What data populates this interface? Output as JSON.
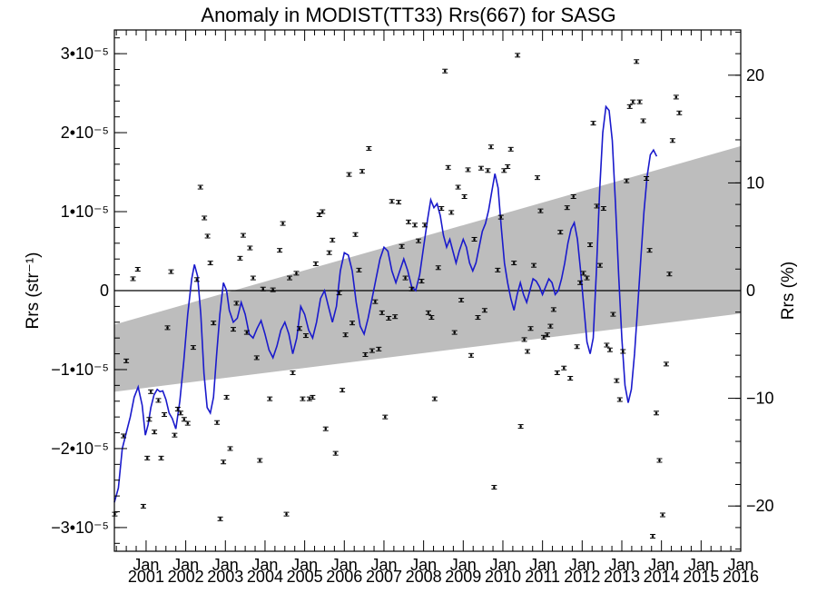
{
  "chart_data": {
    "type": "scatter",
    "title": "Anomaly in MODIST(TT33) Rrs(667) for SASG",
    "ylabel_left": "Rrs (str⁻¹)",
    "ylabel_right": "Rrs (%)",
    "x_tick_month_label": "Jan",
    "x_ticks": [
      "2001",
      "2002",
      "2003",
      "2004",
      "2005",
      "2006",
      "2007",
      "2008",
      "2009",
      "2010",
      "2011",
      "2012",
      "2013",
      "2014",
      "2015",
      "2016"
    ],
    "xlim": [
      2000.2,
      2016.0
    ],
    "ylim_left": [
      -3.3e-05,
      3.3e-05
    ],
    "ylim_right": [
      -24.2,
      24.2
    ],
    "y_ticks_left": [
      {
        "value": 3e-05,
        "label": "3•10⁻⁵"
      },
      {
        "value": 2e-05,
        "label": "2•10⁻⁵"
      },
      {
        "value": 1e-05,
        "label": "1•10⁻⁵"
      },
      {
        "value": 0,
        "label": "0"
      },
      {
        "value": -1e-05,
        "label": "−1•10⁻⁵"
      },
      {
        "value": -2e-05,
        "label": "−2•10⁻⁵"
      },
      {
        "value": -3e-05,
        "label": "−3•10⁻⁵"
      }
    ],
    "y_ticks_right": [
      {
        "value": 20,
        "label": "20"
      },
      {
        "value": 10,
        "label": "10"
      },
      {
        "value": 0,
        "label": "0"
      },
      {
        "value": -10,
        "label": "−10"
      },
      {
        "value": -20,
        "label": "−20"
      }
    ],
    "trend_band": {
      "x": [
        2000.2,
        2016.0
      ],
      "upper": [
        -4.3e-06,
        1.83e-05
      ],
      "lower": [
        -1.28e-05,
        -2.9e-06
      ]
    },
    "points": [
      [
        2000.21,
        -2.83e-05
      ],
      [
        2000.43,
        -1.84e-05
      ],
      [
        2000.5,
        -8.9e-06
      ],
      [
        2000.67,
        1.5e-06
      ],
      [
        2000.79,
        2.7e-06
      ],
      [
        2000.93,
        -2.73e-05
      ],
      [
        2001.03,
        -2.12e-05
      ],
      [
        2001.08,
        -1.63e-05
      ],
      [
        2001.12,
        -1.28e-05
      ],
      [
        2001.21,
        -1.79e-05
      ],
      [
        2001.31,
        -1.39e-05
      ],
      [
        2001.38,
        -2.12e-05
      ],
      [
        2001.46,
        -1.57e-05
      ],
      [
        2001.54,
        -4.7e-06
      ],
      [
        2001.63,
        2.4e-06
      ],
      [
        2001.72,
        -1.83e-05
      ],
      [
        2001.8,
        -1.5e-05
      ],
      [
        2001.87,
        -1.55e-05
      ],
      [
        2001.96,
        -1.63e-05
      ],
      [
        2002.05,
        -1.68e-05
      ],
      [
        2002.19,
        -7.2e-06
      ],
      [
        2002.28,
        1.4e-06
      ],
      [
        2002.37,
        1.31e-05
      ],
      [
        2002.47,
        9.2e-06
      ],
      [
        2002.55,
        6.9e-06
      ],
      [
        2002.62,
        3.5e-06
      ],
      [
        2002.7,
        -4.1e-06
      ],
      [
        2002.79,
        -1.67e-05
      ],
      [
        2002.87,
        -2.89e-05
      ],
      [
        2002.95,
        -2.17e-05
      ],
      [
        2003.03,
        -1.35e-05
      ],
      [
        2003.12,
        -2e-05
      ],
      [
        2003.2,
        -4.9e-06
      ],
      [
        2003.28,
        -1.6e-06
      ],
      [
        2003.37,
        4.1e-06
      ],
      [
        2003.45,
        7e-06
      ],
      [
        2003.54,
        -5.3e-06
      ],
      [
        2003.62,
        5.4e-06
      ],
      [
        2003.7,
        1.6e-06
      ],
      [
        2003.79,
        -8.5e-06
      ],
      [
        2003.87,
        -2.15e-05
      ],
      [
        2003.95,
        2e-07
      ],
      [
        2004.12,
        -1.37e-05
      ],
      [
        2004.2,
        1e-07
      ],
      [
        2004.37,
        5.1e-06
      ],
      [
        2004.45,
        8.5e-06
      ],
      [
        2004.54,
        -2.83e-05
      ],
      [
        2004.62,
        1.6e-06
      ],
      [
        2004.7,
        -1.04e-05
      ],
      [
        2004.79,
        2.2e-06
      ],
      [
        2004.87,
        -4.8e-06
      ],
      [
        2004.95,
        -1.37e-05
      ],
      [
        2005.03,
        -5.7e-06
      ],
      [
        2005.12,
        -1.37e-05
      ],
      [
        2005.2,
        -1.35e-05
      ],
      [
        2005.28,
        3.4e-06
      ],
      [
        2005.37,
        9.6e-06
      ],
      [
        2005.45,
        1e-05
      ],
      [
        2005.53,
        -1.75e-05
      ],
      [
        2005.62,
        4.8e-06
      ],
      [
        2005.7,
        6.4e-06
      ],
      [
        2005.78,
        -2.06e-05
      ],
      [
        2005.87,
        -3e-07
      ],
      [
        2005.95,
        -1.26e-05
      ],
      [
        2006.03,
        -5.6e-06
      ],
      [
        2006.12,
        1.47e-05
      ],
      [
        2006.2,
        -4.1e-06
      ],
      [
        2006.28,
        7.1e-06
      ],
      [
        2006.37,
        2.6e-06
      ],
      [
        2006.45,
        1.51e-05
      ],
      [
        2006.53,
        -8.1e-06
      ],
      [
        2006.62,
        1.8e-05
      ],
      [
        2006.7,
        -7.6e-06
      ],
      [
        2006.78,
        -1.4e-06
      ],
      [
        2006.87,
        -7.4e-06
      ],
      [
        2006.95,
        -2.8e-06
      ],
      [
        2007.03,
        -1.6e-05
      ],
      [
        2007.12,
        -3.5e-06
      ],
      [
        2007.2,
        1.13e-05
      ],
      [
        2007.28,
        -3.3e-06
      ],
      [
        2007.37,
        1.12e-05
      ],
      [
        2007.45,
        5.6e-06
      ],
      [
        2007.54,
        1.6e-06
      ],
      [
        2007.62,
        8.7e-06
      ],
      [
        2007.7,
        2e-07
      ],
      [
        2007.78,
        8.3e-06
      ],
      [
        2007.87,
        6.3e-06
      ],
      [
        2007.95,
        1.2e-06
      ],
      [
        2008.03,
        8.3e-06
      ],
      [
        2008.12,
        -2.8e-06
      ],
      [
        2008.2,
        -3.4e-06
      ],
      [
        2008.28,
        -1.37e-05
      ],
      [
        2008.37,
        2.9e-06
      ],
      [
        2008.45,
        1.04e-05
      ],
      [
        2008.54,
        2.78e-05
      ],
      [
        2008.62,
        1.56e-05
      ],
      [
        2008.7,
        9.9e-06
      ],
      [
        2008.78,
        -5.3e-06
      ],
      [
        2008.87,
        1.31e-05
      ],
      [
        2008.95,
        -1.2e-06
      ],
      [
        2009.03,
        1.19e-05
      ],
      [
        2009.12,
        1.53e-05
      ],
      [
        2009.2,
        -8.2e-06
      ],
      [
        2009.28,
        6.5e-06
      ],
      [
        2009.37,
        -3.4e-06
      ],
      [
        2009.45,
        1.55e-05
      ],
      [
        2009.54,
        -2.5e-06
      ],
      [
        2009.62,
        1.52e-05
      ],
      [
        2009.7,
        1.82e-05
      ],
      [
        2009.78,
        -2.49e-05
      ],
      [
        2009.87,
        2.6e-06
      ],
      [
        2009.95,
        9.3e-06
      ],
      [
        2010.03,
        1.52e-05
      ],
      [
        2010.12,
        1.57e-05
      ],
      [
        2010.2,
        1.79e-05
      ],
      [
        2010.28,
        3.5e-06
      ],
      [
        2010.37,
        2.98e-05
      ],
      [
        2010.45,
        -1.72e-05
      ],
      [
        2010.54,
        -6.2e-06
      ],
      [
        2010.62,
        -7.7e-06
      ],
      [
        2010.7,
        -4.8e-06
      ],
      [
        2010.78,
        3.2e-06
      ],
      [
        2010.87,
        1.43e-05
      ],
      [
        2010.95,
        1.01e-05
      ],
      [
        2011.03,
        -5.9e-06
      ],
      [
        2011.12,
        -5.6e-06
      ],
      [
        2011.2,
        -4.5e-06
      ],
      [
        2011.28,
        -2.4e-06
      ],
      [
        2011.37,
        -1.04e-05
      ],
      [
        2011.45,
        7.4e-06
      ],
      [
        2011.54,
        -9.8e-06
      ],
      [
        2011.62,
        1.05e-05
      ],
      [
        2011.7,
        -1.11e-05
      ],
      [
        2011.78,
        1.19e-05
      ],
      [
        2011.87,
        -7.1e-06
      ],
      [
        2011.95,
        1e-06
      ],
      [
        2012.03,
        2.2e-06
      ],
      [
        2012.12,
        1.6e-06
      ],
      [
        2012.2,
        5.8e-06
      ],
      [
        2012.28,
        2.12e-05
      ],
      [
        2012.37,
        1.07e-05
      ],
      [
        2012.45,
        3.2e-06
      ],
      [
        2012.54,
        1.04e-05
      ],
      [
        2012.62,
        -6.9e-06
      ],
      [
        2012.7,
        -7.5e-06
      ],
      [
        2012.78,
        -3e-06
      ],
      [
        2012.87,
        -1.14e-05
      ],
      [
        2012.95,
        -1.38e-05
      ],
      [
        2013.03,
        -7.7e-06
      ],
      [
        2013.12,
        1.39e-05
      ],
      [
        2013.2,
        2.33e-05
      ],
      [
        2013.28,
        2.39e-05
      ],
      [
        2013.37,
        2.9e-05
      ],
      [
        2013.45,
        2.39e-05
      ],
      [
        2013.54,
        2.15e-05
      ],
      [
        2013.62,
        1.42e-05
      ],
      [
        2013.7,
        5.1e-06
      ],
      [
        2013.78,
        -3.11e-05
      ],
      [
        2013.87,
        -1.55e-05
      ],
      [
        2013.95,
        -2.15e-05
      ],
      [
        2014.03,
        -2.84e-05
      ],
      [
        2014.12,
        -9.3e-06
      ],
      [
        2014.2,
        2.1e-06
      ],
      [
        2014.28,
        1.9e-05
      ],
      [
        2014.37,
        2.45e-05
      ],
      [
        2014.45,
        2.25e-05
      ]
    ],
    "anomaly_line": [
      [
        2000.2,
        -2.68e-05
      ],
      [
        2000.3,
        -2.5e-05
      ],
      [
        2000.4,
        -2e-05
      ],
      [
        2000.5,
        -1.8e-05
      ],
      [
        2000.6,
        -1.6e-05
      ],
      [
        2000.7,
        -1.35e-05
      ],
      [
        2000.8,
        -1.22e-05
      ],
      [
        2000.9,
        -1.45e-05
      ],
      [
        2000.98,
        -1.83e-05
      ],
      [
        2001.05,
        -1.7e-05
      ],
      [
        2001.12,
        -1.48e-05
      ],
      [
        2001.2,
        -1.32e-05
      ],
      [
        2001.28,
        -1.25e-05
      ],
      [
        2001.35,
        -1.28e-05
      ],
      [
        2001.42,
        -1.27e-05
      ],
      [
        2001.5,
        -1.38e-05
      ],
      [
        2001.58,
        -1.55e-05
      ],
      [
        2001.66,
        -1.62e-05
      ],
      [
        2001.75,
        -1.75e-05
      ],
      [
        2001.85,
        -1.4e-05
      ],
      [
        2001.95,
        -9e-06
      ],
      [
        2002.05,
        -3e-06
      ],
      [
        2002.15,
        1.5e-06
      ],
      [
        2002.22,
        3.3e-06
      ],
      [
        2002.3,
        1.8e-06
      ],
      [
        2002.38,
        -3e-06
      ],
      [
        2002.46,
        -1.05e-05
      ],
      [
        2002.54,
        -1.48e-05
      ],
      [
        2002.62,
        -1.55e-05
      ],
      [
        2002.7,
        -1.35e-05
      ],
      [
        2002.78,
        -8e-06
      ],
      [
        2002.86,
        -3e-06
      ],
      [
        2002.95,
        1e-06
      ],
      [
        2003.03,
        0.0
      ],
      [
        2003.1,
        -2.5e-06
      ],
      [
        2003.2,
        -4e-06
      ],
      [
        2003.3,
        -3.5e-06
      ],
      [
        2003.4,
        -1.5e-06
      ],
      [
        2003.5,
        -3e-06
      ],
      [
        2003.6,
        -5.5e-06
      ],
      [
        2003.7,
        -6e-06
      ],
      [
        2003.8,
        -4.8e-06
      ],
      [
        2003.9,
        -3.8e-06
      ],
      [
        2004.0,
        -5.5e-06
      ],
      [
        2004.1,
        -7.5e-06
      ],
      [
        2004.2,
        -8.5e-06
      ],
      [
        2004.3,
        -7e-06
      ],
      [
        2004.4,
        -5e-06
      ],
      [
        2004.5,
        -4e-06
      ],
      [
        2004.6,
        -5.5e-06
      ],
      [
        2004.7,
        -8e-06
      ],
      [
        2004.8,
        -6e-06
      ],
      [
        2004.9,
        -2e-06
      ],
      [
        2005.0,
        -3e-06
      ],
      [
        2005.1,
        -5e-06
      ],
      [
        2005.2,
        -6e-06
      ],
      [
        2005.3,
        -4e-06
      ],
      [
        2005.4,
        -1e-06
      ],
      [
        2005.5,
        0.0
      ],
      [
        2005.6,
        -2e-06
      ],
      [
        2005.7,
        -4e-06
      ],
      [
        2005.8,
        -2e-06
      ],
      [
        2005.9,
        2.5e-06
      ],
      [
        2006.0,
        4.8e-06
      ],
      [
        2006.1,
        4.5e-06
      ],
      [
        2006.2,
        2.5e-06
      ],
      [
        2006.3,
        -1.5e-06
      ],
      [
        2006.4,
        -4.5e-06
      ],
      [
        2006.5,
        -5.5e-06
      ],
      [
        2006.6,
        -3.5e-06
      ],
      [
        2006.7,
        -1e-06
      ],
      [
        2006.8,
        1.5e-06
      ],
      [
        2006.9,
        4e-06
      ],
      [
        2007.0,
        5.5e-06
      ],
      [
        2007.1,
        5e-06
      ],
      [
        2007.2,
        2.5e-06
      ],
      [
        2007.3,
        1e-06
      ],
      [
        2007.4,
        2.5e-06
      ],
      [
        2007.5,
        4e-06
      ],
      [
        2007.6,
        2.5e-06
      ],
      [
        2007.7,
        5e-07
      ],
      [
        2007.8,
        0.0
      ],
      [
        2007.9,
        2e-06
      ],
      [
        2008.0,
        5.5e-06
      ],
      [
        2008.1,
        9e-06
      ],
      [
        2008.18,
        1.15e-05
      ],
      [
        2008.26,
        1.05e-05
      ],
      [
        2008.34,
        1.1e-05
      ],
      [
        2008.42,
        9.5e-06
      ],
      [
        2008.5,
        7e-06
      ],
      [
        2008.58,
        5.5e-06
      ],
      [
        2008.66,
        6.5e-06
      ],
      [
        2008.74,
        5e-06
      ],
      [
        2008.82,
        3.5e-06
      ],
      [
        2008.9,
        5e-06
      ],
      [
        2009.0,
        6.5e-06
      ],
      [
        2009.08,
        5.5e-06
      ],
      [
        2009.16,
        3.5e-06
      ],
      [
        2009.24,
        2.5e-06
      ],
      [
        2009.32,
        3.5e-06
      ],
      [
        2009.4,
        5.5e-06
      ],
      [
        2009.48,
        7.5e-06
      ],
      [
        2009.56,
        8.5e-06
      ],
      [
        2009.64,
        1.02e-05
      ],
      [
        2009.72,
        1.25e-05
      ],
      [
        2009.8,
        1.48e-05
      ],
      [
        2009.88,
        1.3e-05
      ],
      [
        2009.96,
        8e-06
      ],
      [
        2010.04,
        3.5e-06
      ],
      [
        2010.12,
        1e-06
      ],
      [
        2010.2,
        -1e-06
      ],
      [
        2010.28,
        -2.5e-06
      ],
      [
        2010.36,
        -5e-07
      ],
      [
        2010.44,
        1e-06
      ],
      [
        2010.52,
        -5e-07
      ],
      [
        2010.6,
        -1.5e-06
      ],
      [
        2010.68,
        0.0
      ],
      [
        2010.76,
        1.5e-06
      ],
      [
        2010.84,
        1.2e-06
      ],
      [
        2010.92,
        5e-07
      ],
      [
        2011.0,
        -5e-07
      ],
      [
        2011.08,
        5e-07
      ],
      [
        2011.16,
        1.5e-06
      ],
      [
        2011.24,
        1e-06
      ],
      [
        2011.32,
        -5e-07
      ],
      [
        2011.4,
        0.0
      ],
      [
        2011.48,
        1.5e-06
      ],
      [
        2011.56,
        3.5e-06
      ],
      [
        2011.64,
        6e-06
      ],
      [
        2011.72,
        7.8e-06
      ],
      [
        2011.8,
        8.6e-06
      ],
      [
        2011.88,
        6.5e-06
      ],
      [
        2011.96,
        2.5e-06
      ],
      [
        2012.04,
        -2e-06
      ],
      [
        2012.12,
        -6.5e-06
      ],
      [
        2012.2,
        -8e-06
      ],
      [
        2012.28,
        -6e-06
      ],
      [
        2012.36,
        2.5e-06
      ],
      [
        2012.44,
        1.25e-05
      ],
      [
        2012.52,
        2e-05
      ],
      [
        2012.6,
        2.33e-05
      ],
      [
        2012.68,
        2.28e-05
      ],
      [
        2012.76,
        1.9e-05
      ],
      [
        2012.84,
        1.1e-05
      ],
      [
        2012.92,
        2e-06
      ],
      [
        2013.0,
        -6e-06
      ],
      [
        2013.08,
        -1.2e-05
      ],
      [
        2013.16,
        -1.42e-05
      ],
      [
        2013.24,
        -1.25e-05
      ],
      [
        2013.32,
        -8e-06
      ],
      [
        2013.4,
        -2e-06
      ],
      [
        2013.48,
        4e-06
      ],
      [
        2013.56,
        1e-05
      ],
      [
        2013.64,
        1.45e-05
      ],
      [
        2013.72,
        1.72e-05
      ],
      [
        2013.8,
        1.78e-05
      ],
      [
        2013.88,
        1.7e-05
      ]
    ]
  }
}
